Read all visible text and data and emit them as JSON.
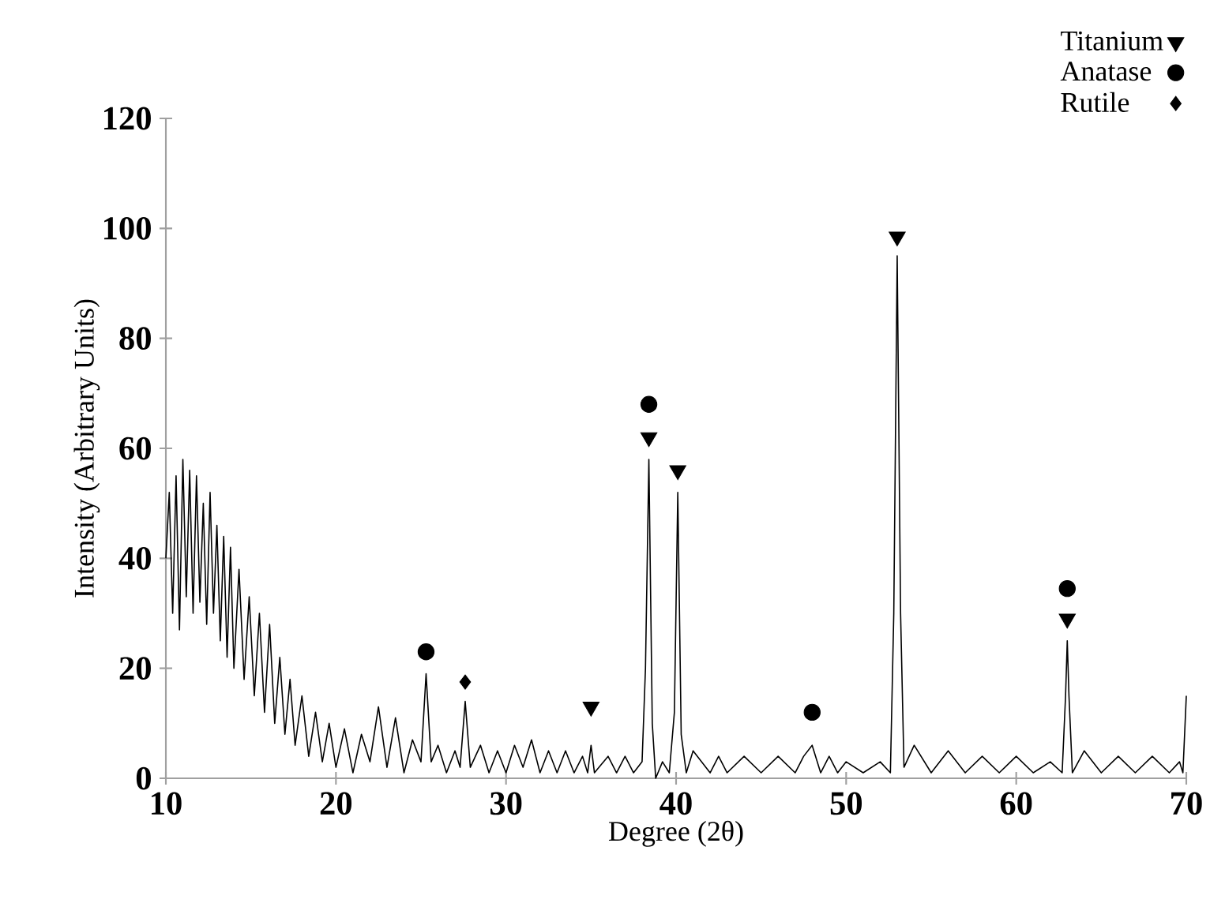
{
  "chart_data": {
    "type": "line",
    "xlabel": "Degree (2θ)",
    "ylabel": "Intensity (Arbitrary Units)",
    "xlim": [
      10,
      70
    ],
    "xticks": [
      10,
      20,
      30,
      40,
      50,
      60,
      70
    ],
    "ylim": [
      0,
      120
    ],
    "yticks": [
      0,
      20,
      40,
      60,
      80,
      100,
      120
    ],
    "legend": "top right",
    "series": [
      {
        "color": "#000000",
        "marker": "none",
        "x": [
          10,
          10.2,
          10.4,
          10.6,
          10.8,
          11.0,
          11.2,
          11.4,
          11.6,
          11.8,
          12.0,
          12.2,
          12.4,
          12.6,
          12.8,
          13.0,
          13.2,
          13.4,
          13.6,
          13.8,
          14.0,
          14.3,
          14.6,
          14.9,
          15.2,
          15.5,
          15.8,
          16.1,
          16.4,
          16.7,
          17.0,
          17.3,
          17.6,
          18.0,
          18.4,
          18.8,
          19.2,
          19.6,
          20.0,
          20.5,
          21.0,
          21.5,
          22.0,
          22.5,
          23.0,
          23.5,
          24.0,
          24.5,
          25.0,
          25.3,
          25.6,
          26.0,
          26.5,
          27.0,
          27.3,
          27.6,
          27.9,
          28.5,
          29,
          29.5,
          30,
          30.5,
          31,
          31.5,
          32,
          32.5,
          33,
          33.5,
          34,
          34.5,
          34.8,
          35,
          35.2,
          36,
          36.5,
          37,
          37.5,
          38.0,
          38.2,
          38.4,
          38.6,
          38.8,
          39.2,
          39.6,
          39.9,
          40.1,
          40.3,
          40.6,
          41,
          42,
          42.5,
          43,
          44,
          45,
          46,
          47,
          47.5,
          48,
          48.5,
          49,
          49.5,
          50,
          51,
          52,
          52.6,
          52.8,
          53.0,
          53.2,
          53.4,
          54,
          55,
          56,
          57,
          58,
          59,
          60,
          61,
          62,
          62.7,
          62.9,
          63.0,
          63.1,
          63.3,
          64,
          65,
          66,
          67,
          68,
          69,
          69.6,
          69.8,
          70
        ],
        "values": [
          40,
          52,
          30,
          55,
          27,
          58,
          33,
          56,
          30,
          55,
          32,
          50,
          28,
          52,
          30,
          46,
          25,
          44,
          22,
          42,
          20,
          38,
          18,
          33,
          15,
          30,
          12,
          28,
          10,
          22,
          8,
          18,
          6,
          15,
          4,
          12,
          3,
          10,
          2,
          9,
          1,
          8,
          3,
          13,
          2,
          11,
          1,
          7,
          3,
          19,
          3,
          6,
          1,
          5,
          2,
          14,
          2,
          6,
          1,
          5,
          1,
          6,
          2,
          7,
          1,
          5,
          1,
          5,
          1,
          4,
          1,
          6,
          1,
          4,
          1,
          4,
          1,
          3,
          20,
          58,
          10,
          0,
          3,
          1,
          12,
          52,
          8,
          1,
          5,
          1,
          4,
          1,
          4,
          1,
          4,
          1,
          4,
          6,
          1,
          4,
          1,
          3,
          1,
          3,
          1,
          30,
          95,
          30,
          2,
          6,
          1,
          5,
          1,
          4,
          1,
          4,
          1,
          3,
          1,
          15,
          25,
          15,
          1,
          5,
          1,
          4,
          1,
          4,
          1,
          3,
          1,
          15
        ]
      },
      {
        "type": "scatter",
        "name": "Titanium",
        "color": "#000000",
        "marker": "triangle",
        "x": [
          35,
          38.4,
          40.1,
          53.0,
          63.0
        ],
        "values": [
          13,
          62,
          56,
          98.5,
          29
        ]
      },
      {
        "type": "scatter",
        "name": "Anatase",
        "color": "#000000",
        "marker": "circle",
        "x": [
          25.3,
          38.4,
          48.0,
          63.0
        ],
        "values": [
          23,
          68,
          12,
          34.5
        ]
      },
      {
        "type": "scatter",
        "name": "Rutile",
        "color": "#000000",
        "marker": "diamond",
        "x": [
          27.6
        ],
        "values": [
          17.5
        ]
      }
    ]
  }
}
